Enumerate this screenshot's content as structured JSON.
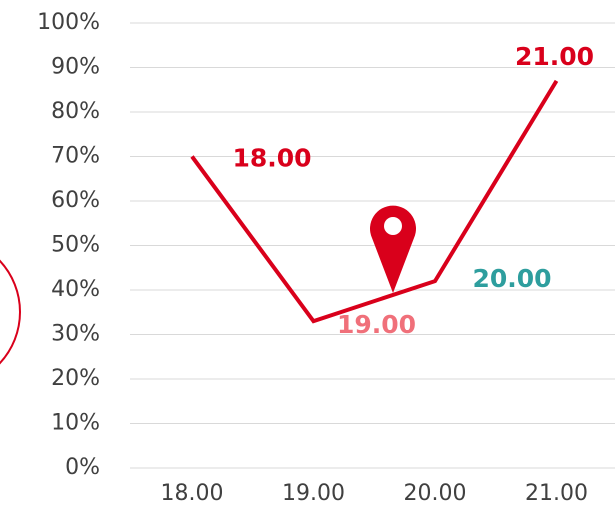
{
  "chart_data": {
    "type": "line",
    "categories": [
      "18.00",
      "19.00",
      "20.00",
      "21.00"
    ],
    "values": [
      70,
      33,
      42,
      87
    ],
    "color": "#d9001b",
    "label_colors": [
      "#d9001b",
      "#f0707a",
      "#2e9e9e",
      "#d9001b"
    ],
    "ylim": [
      0,
      100
    ],
    "yticks": [
      {
        "value": 0,
        "label": "0%"
      },
      {
        "value": 10,
        "label": "10%"
      },
      {
        "value": 20,
        "label": "20%"
      },
      {
        "value": 30,
        "label": "30%"
      },
      {
        "value": 40,
        "label": "40%"
      },
      {
        "value": 50,
        "label": "50%"
      },
      {
        "value": 60,
        "label": "60%"
      },
      {
        "value": 70,
        "label": "70%"
      },
      {
        "value": 80,
        "label": "80%"
      },
      {
        "value": 90,
        "label": "90%"
      },
      {
        "value": 100,
        "label": "100%"
      }
    ],
    "grid": true
  }
}
